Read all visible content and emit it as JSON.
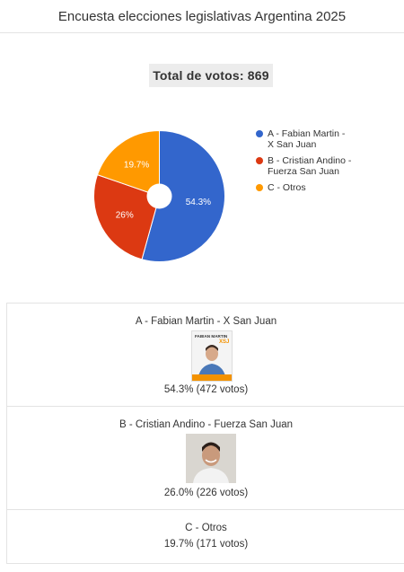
{
  "header": {
    "title": "Encuesta elecciones legislativas Argentina 2025"
  },
  "summary": {
    "total_votes_label": "Total de votos: 869"
  },
  "chart_data": {
    "type": "pie",
    "donut": true,
    "categories": [
      "A - Fabian Martin - X San Juan",
      "B - Cristian Andino - Fuerza San Juan",
      "C - Otros"
    ],
    "values": [
      54.3,
      26.0,
      19.7
    ],
    "data_labels": [
      "54.3%",
      "26%",
      "19.7%"
    ],
    "colors": [
      "#3366cc",
      "#dc3912",
      "#ff9900"
    ],
    "legend_position": "right"
  },
  "legend": [
    {
      "line1": "A - Fabian Martin -",
      "line2": "X San Juan",
      "color": "#3366cc"
    },
    {
      "line1": "B - Cristian Andino -",
      "line2": "Fuerza San Juan",
      "color": "#dc3912"
    },
    {
      "line1": "C - Otros",
      "line2": "",
      "color": "#ff9900"
    }
  ],
  "options": [
    {
      "label": "A - Fabian Martin - X San Juan",
      "result": "54.3% (472 votos)",
      "image_text": "FABIAN MARTIN XSJ"
    },
    {
      "label": "B - Cristian Andino - Fuerza San Juan",
      "result": "26.0% (226 votos)"
    },
    {
      "label": "C - Otros",
      "result": "19.7% (171 votos)"
    }
  ]
}
